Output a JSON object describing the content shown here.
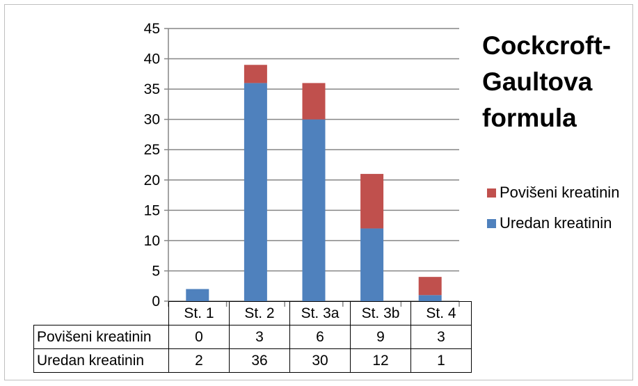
{
  "chart_data": {
    "type": "bar",
    "stacked": true,
    "title": [
      "Cockcroft-",
      "Gaultova",
      "formula"
    ],
    "categories": [
      "St. 1",
      "St. 2",
      "St. 3a",
      "St. 3b",
      "St. 4"
    ],
    "series": [
      {
        "name": "Uredan kreatinin",
        "values": [
          2,
          36,
          30,
          12,
          1
        ],
        "color": "#4f81bd"
      },
      {
        "name": "Povišeni kreatinin",
        "values": [
          0,
          3,
          6,
          9,
          3
        ],
        "color": "#c0504d"
      }
    ],
    "ylim": [
      0,
      45
    ],
    "yticks": [
      "0",
      "5",
      "10",
      "15",
      "20",
      "25",
      "30",
      "35",
      "40",
      "45"
    ],
    "grid": true,
    "legend": "right",
    "data_table": true
  }
}
